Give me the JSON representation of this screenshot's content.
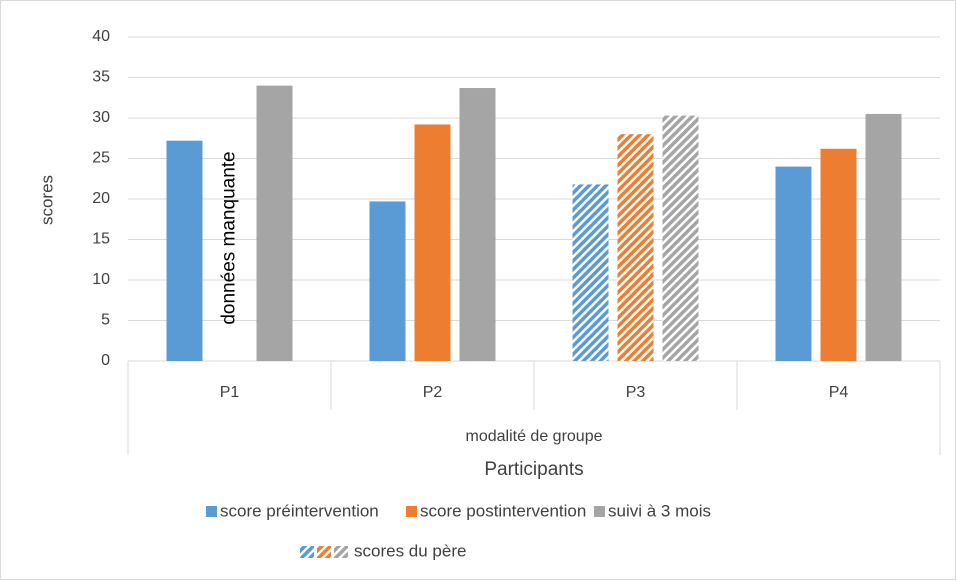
{
  "chart_data": {
    "type": "bar",
    "categories": [
      "P1",
      "P2",
      "P3",
      "P4"
    ],
    "category_group": "modalité de groupe",
    "xlabel": "Participants",
    "ylabel": "scores",
    "ylim": [
      0,
      40
    ],
    "yticks": [
      0,
      5,
      10,
      15,
      20,
      25,
      30,
      35,
      40
    ],
    "grid": true,
    "series": [
      {
        "name": "score préintervention",
        "color": "#5b9bd5",
        "values": [
          27.2,
          19.7,
          21.8,
          24
        ]
      },
      {
        "name": "score postintervention",
        "color": "#ed7d31",
        "values": [
          null,
          29.2,
          28,
          26.2
        ]
      },
      {
        "name": "suivi à 3 mois",
        "color": "#a5a5a5",
        "values": [
          34,
          33.7,
          30.3,
          30.5
        ]
      }
    ],
    "hatched": [
      false,
      false,
      true,
      false
    ],
    "hatched_legend": "scores du père",
    "annotation": "données manquante",
    "legend": "bottom"
  }
}
